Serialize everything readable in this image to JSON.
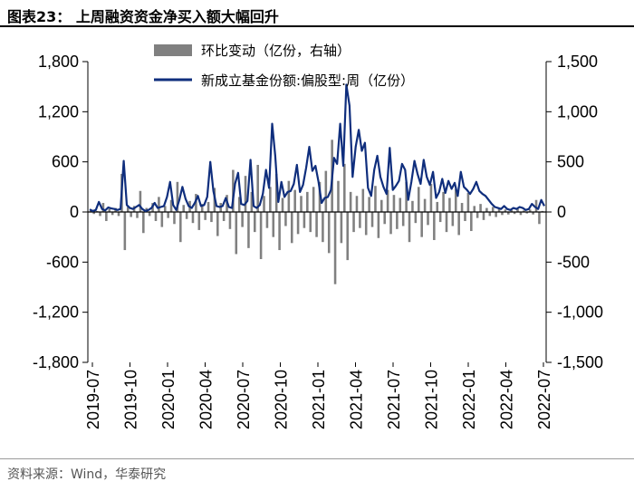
{
  "title": "图表23：  上周融资资金净买入额大幅回升",
  "source": "资料来源：Wind，华泰研究",
  "colors": {
    "bar": "#808080",
    "line": "#0f2e7d",
    "title_rule": "#000000"
  },
  "chart_data": {
    "type": "bar+line",
    "legend": [
      "环比变动（亿份，右轴）",
      "新成立基金份额:偏股型:周（亿份）"
    ],
    "left_axis": {
      "ticks": [
        1800,
        1200,
        600,
        0,
        -600,
        -1200,
        -1800
      ],
      "labels": [
        "1,800",
        "1,200",
        "600",
        "0",
        "-600",
        "-1,200",
        "-1,800"
      ],
      "ylim": [
        -1800,
        1800
      ]
    },
    "right_axis": {
      "ticks": [
        1500,
        1000,
        500,
        0,
        -500,
        -1000,
        -1500
      ],
      "labels": [
        "1,500",
        "1,000",
        "500",
        "0",
        "-500",
        "-1,000",
        "-1,500"
      ],
      "ylim": [
        -1500,
        1500
      ]
    },
    "x_labels": [
      "2019-07",
      "2019-10",
      "2020-01",
      "2020-04",
      "2020-07",
      "2020-10",
      "2021-01",
      "2021-04",
      "2021-07",
      "2021-10",
      "2022-01",
      "2022-04",
      "2022-07"
    ],
    "series": [
      {
        "name": "环比变动（亿份，右轴）",
        "type": "bar",
        "axis": "right",
        "values": [
          20,
          -20,
          10,
          -40,
          90,
          -90,
          30,
          -30,
          40,
          -40,
          380,
          -380,
          50,
          -50,
          60,
          -60,
          210,
          -210,
          40,
          -40,
          90,
          -90,
          150,
          -150,
          60,
          -60,
          120,
          -120,
          300,
          -300,
          70,
          -70,
          110,
          -110,
          180,
          -180,
          80,
          -80,
          100,
          -100,
          240,
          -240,
          90,
          -90,
          170,
          -170,
          420,
          -420,
          150,
          -150,
          360,
          -360,
          200,
          -200,
          470,
          -470,
          160,
          -160,
          250,
          -250,
          380,
          -380,
          140,
          -140,
          310,
          -310,
          220,
          -220,
          160,
          -160,
          200,
          -200,
          250,
          -250,
          300,
          -300,
          410,
          -410,
          720,
          -720,
          310,
          -310,
          480,
          -480,
          200,
          -200,
          160,
          -160,
          230,
          -230,
          150,
          -150,
          260,
          -260,
          120,
          -120,
          220,
          -220,
          170,
          -170,
          140,
          -140,
          300,
          -300,
          110,
          -110,
          250,
          -250,
          130,
          -130,
          280,
          -280,
          100,
          -100,
          200,
          -200,
          140,
          -140,
          230,
          -230,
          90,
          -90,
          190,
          -190,
          60,
          -60,
          80,
          -80,
          40,
          -40,
          50,
          -50,
          30,
          -30,
          25,
          -25,
          20,
          -20,
          30,
          -30,
          15,
          -15,
          25,
          -25,
          120,
          -120,
          10
        ]
      },
      {
        "name": "新成立基金份额:偏股型:周（亿份）",
        "type": "line",
        "axis": "right",
        "values": [
          25,
          10,
          20,
          100,
          30,
          15,
          45,
          35,
          30,
          20,
          30,
          510,
          70,
          40,
          30,
          50,
          70,
          30,
          10,
          20,
          40,
          90,
          40,
          50,
          60,
          150,
          300,
          70,
          20,
          120,
          250,
          130,
          60,
          40,
          90,
          160,
          60,
          70,
          150,
          500,
          210,
          60,
          50,
          60,
          140,
          50,
          40,
          280,
          390,
          80,
          70,
          110,
          520,
          60,
          40,
          70,
          180,
          420,
          240,
          880,
          560,
          100,
          300,
          150,
          200,
          210,
          280,
          470,
          200,
          270,
          440,
          650,
          410,
          460,
          300,
          90,
          140,
          150,
          220,
          540,
          480,
          880,
          460,
          1270,
          1060,
          350,
          650,
          820,
          610,
          690,
          240,
          160,
          420,
          560,
          350,
          250,
          180,
          640,
          220,
          260,
          310,
          480,
          420,
          120,
          300,
          510,
          380,
          280,
          520,
          350,
          270,
          400,
          140,
          200,
          330,
          190,
          310,
          230,
          290,
          160,
          400,
          250,
          220,
          180,
          230,
          300,
          210,
          180,
          160,
          120,
          80,
          50,
          40,
          30,
          60,
          30,
          20,
          40,
          30,
          50,
          40,
          20,
          30,
          80,
          50,
          30,
          120,
          60
        ]
      }
    ]
  }
}
